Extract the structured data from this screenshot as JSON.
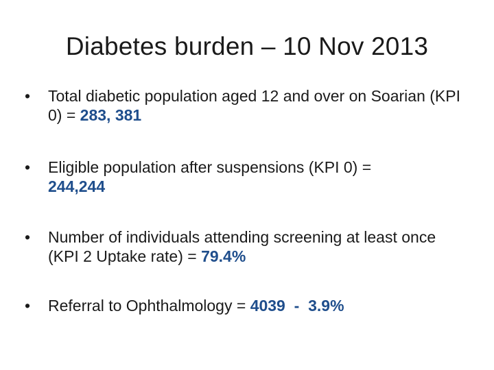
{
  "title": "Diabetes burden – 10 Nov 2013",
  "bullets": [
    {
      "text_before": "Total diabetic population aged 12 and over on Soarian (KPI 0)  = ",
      "value": "283, 381"
    },
    {
      "text_before": "Eligible population after suspensions (KPI 0) = ",
      "value": "244,244"
    },
    {
      "text_before": "Number of individuals attending screening at least once (KPI 2 Uptake rate) =  ",
      "value": "79.4%"
    },
    {
      "text_before": "Referral to Ophthalmology = ",
      "value": "4039",
      "text_middle": "  -  ",
      "value2": "3.9%"
    }
  ],
  "bullet_glyph": "•",
  "colors": {
    "highlight": "#1f4e8c",
    "text": "#1a1a1a",
    "background": "#ffffff"
  }
}
